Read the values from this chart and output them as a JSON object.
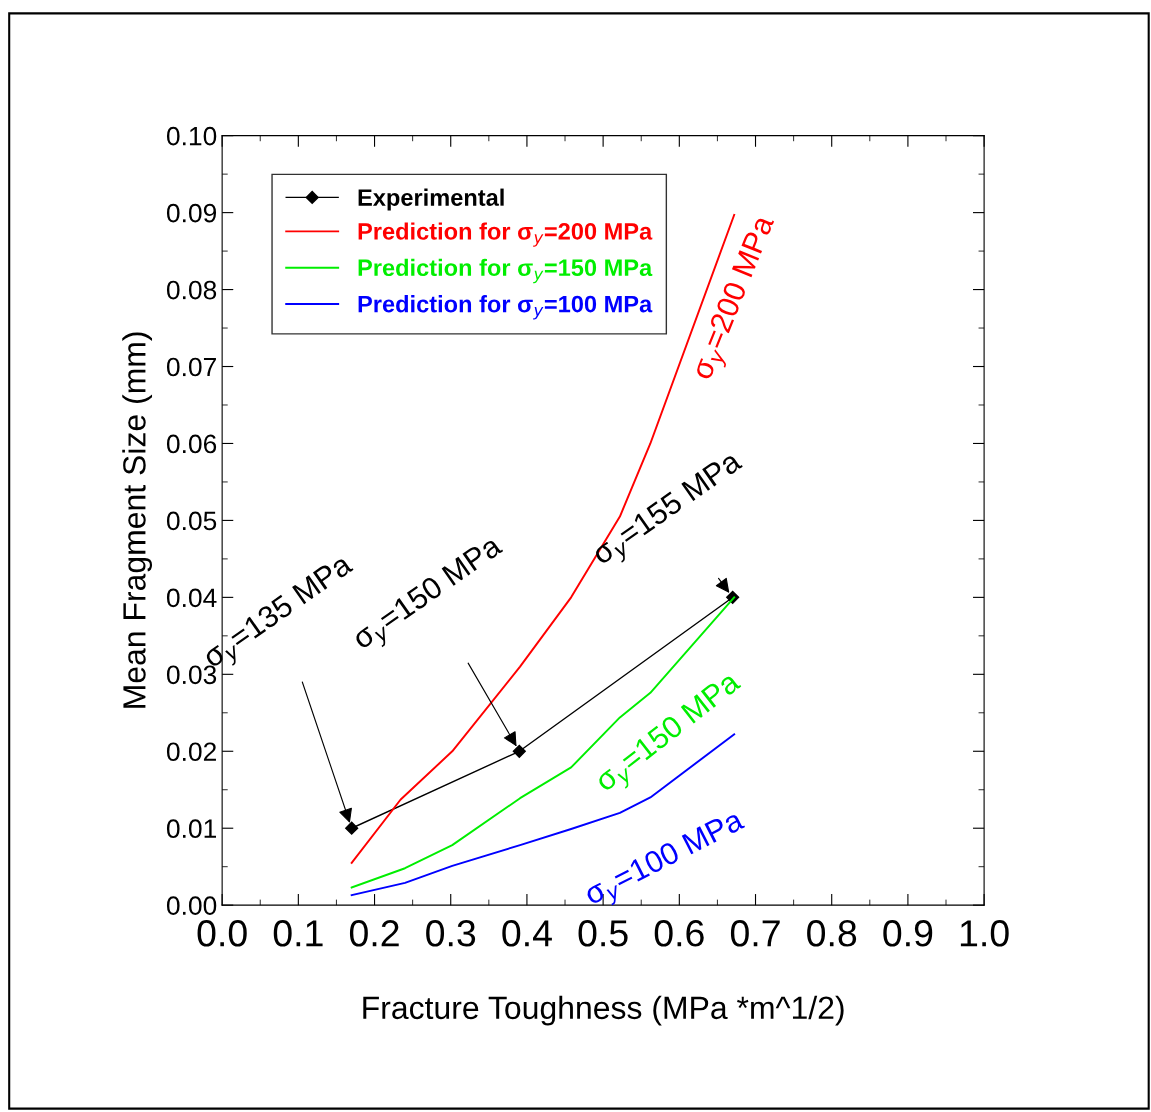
{
  "chart_data": {
    "type": "line",
    "xlabel": "Fracture Toughness (MPa *m^1/2)",
    "ylabel": "Mean Fragment Size (mm)",
    "xlim": [
      0.0,
      1.0
    ],
    "ylim": [
      0.0,
      0.1
    ],
    "xticks": [
      {
        "value": 0.0,
        "label": "0.0"
      },
      {
        "value": 0.1,
        "label": "0.1"
      },
      {
        "value": 0.2,
        "label": "0.2"
      },
      {
        "value": 0.3,
        "label": "0.3"
      },
      {
        "value": 0.4,
        "label": "0.4"
      },
      {
        "value": 0.5,
        "label": "0.5"
      },
      {
        "value": 0.6,
        "label": "0.6"
      },
      {
        "value": 0.7,
        "label": "0.7"
      },
      {
        "value": 0.8,
        "label": "0.8"
      },
      {
        "value": 0.9,
        "label": "0.9"
      },
      {
        "value": 1.0,
        "label": "1.0"
      }
    ],
    "yticks": [
      {
        "value": 0.0,
        "label": "0.00"
      },
      {
        "value": 0.01,
        "label": "0.01"
      },
      {
        "value": 0.02,
        "label": "0.02"
      },
      {
        "value": 0.03,
        "label": "0.03"
      },
      {
        "value": 0.04,
        "label": "0.04"
      },
      {
        "value": 0.05,
        "label": "0.05"
      },
      {
        "value": 0.06,
        "label": "0.06"
      },
      {
        "value": 0.07,
        "label": "0.07"
      },
      {
        "value": 0.08,
        "label": "0.08"
      },
      {
        "value": 0.09,
        "label": "0.09"
      },
      {
        "value": 0.1,
        "label": "0.10"
      }
    ],
    "grid": false,
    "legend": "top left",
    "line_style": "solid",
    "series": [
      {
        "name": "Experimental",
        "color": "#000000",
        "marker": "diamond",
        "x": [
          0.17,
          0.39,
          0.67
        ],
        "values": [
          0.01,
          0.02,
          0.04
        ]
      },
      {
        "name": "Prediction for σ$_{y}$=200 MPa",
        "color": "#ff0000",
        "x": [
          0.17,
          0.234,
          0.302,
          0.391,
          0.458,
          0.522,
          0.562,
          0.672
        ],
        "values": [
          0.0055,
          0.0137,
          0.02,
          0.031,
          0.04,
          0.0505,
          0.06,
          0.0897
        ]
      },
      {
        "name": "Prediction for σ$_{y}$=150 MPa",
        "color": "#00ee00",
        "x": [
          0.17,
          0.24,
          0.302,
          0.391,
          0.458,
          0.522,
          0.562,
          0.672
        ],
        "values": [
          0.0023,
          0.0048,
          0.0078,
          0.0139,
          0.0179,
          0.0244,
          0.0276,
          0.04
        ]
      },
      {
        "name": "Prediction for σ$_{y}$=100 MPa",
        "color": "#0000ff",
        "x": [
          0.17,
          0.24,
          0.302,
          0.391,
          0.458,
          0.522,
          0.562,
          0.672
        ],
        "values": [
          0.0013,
          0.0029,
          0.0051,
          0.0078,
          0.0099,
          0.012,
          0.014,
          0.0222
        ]
      }
    ],
    "annotations": [
      {
        "text": "σ$_{y}$=135 MPa",
        "x": 0.17,
        "y": 0.01
      },
      {
        "text": "σ$_{y}$=150 MPa",
        "x": 0.39,
        "y": 0.02
      },
      {
        "text": "σ$_{y}$=155 MPa",
        "x": 0.67,
        "y": 0.04
      },
      {
        "text": "σ$_{y}$=200 MPa",
        "x": 0.62,
        "y": 0.0757
      },
      {
        "text": "σ$_{y}$=150 MPa",
        "x": 0.58,
        "y": 0.029
      },
      {
        "text": "σ$_{y}$=100 MPa",
        "x": 0.58,
        "y": 0.0155
      }
    ]
  }
}
